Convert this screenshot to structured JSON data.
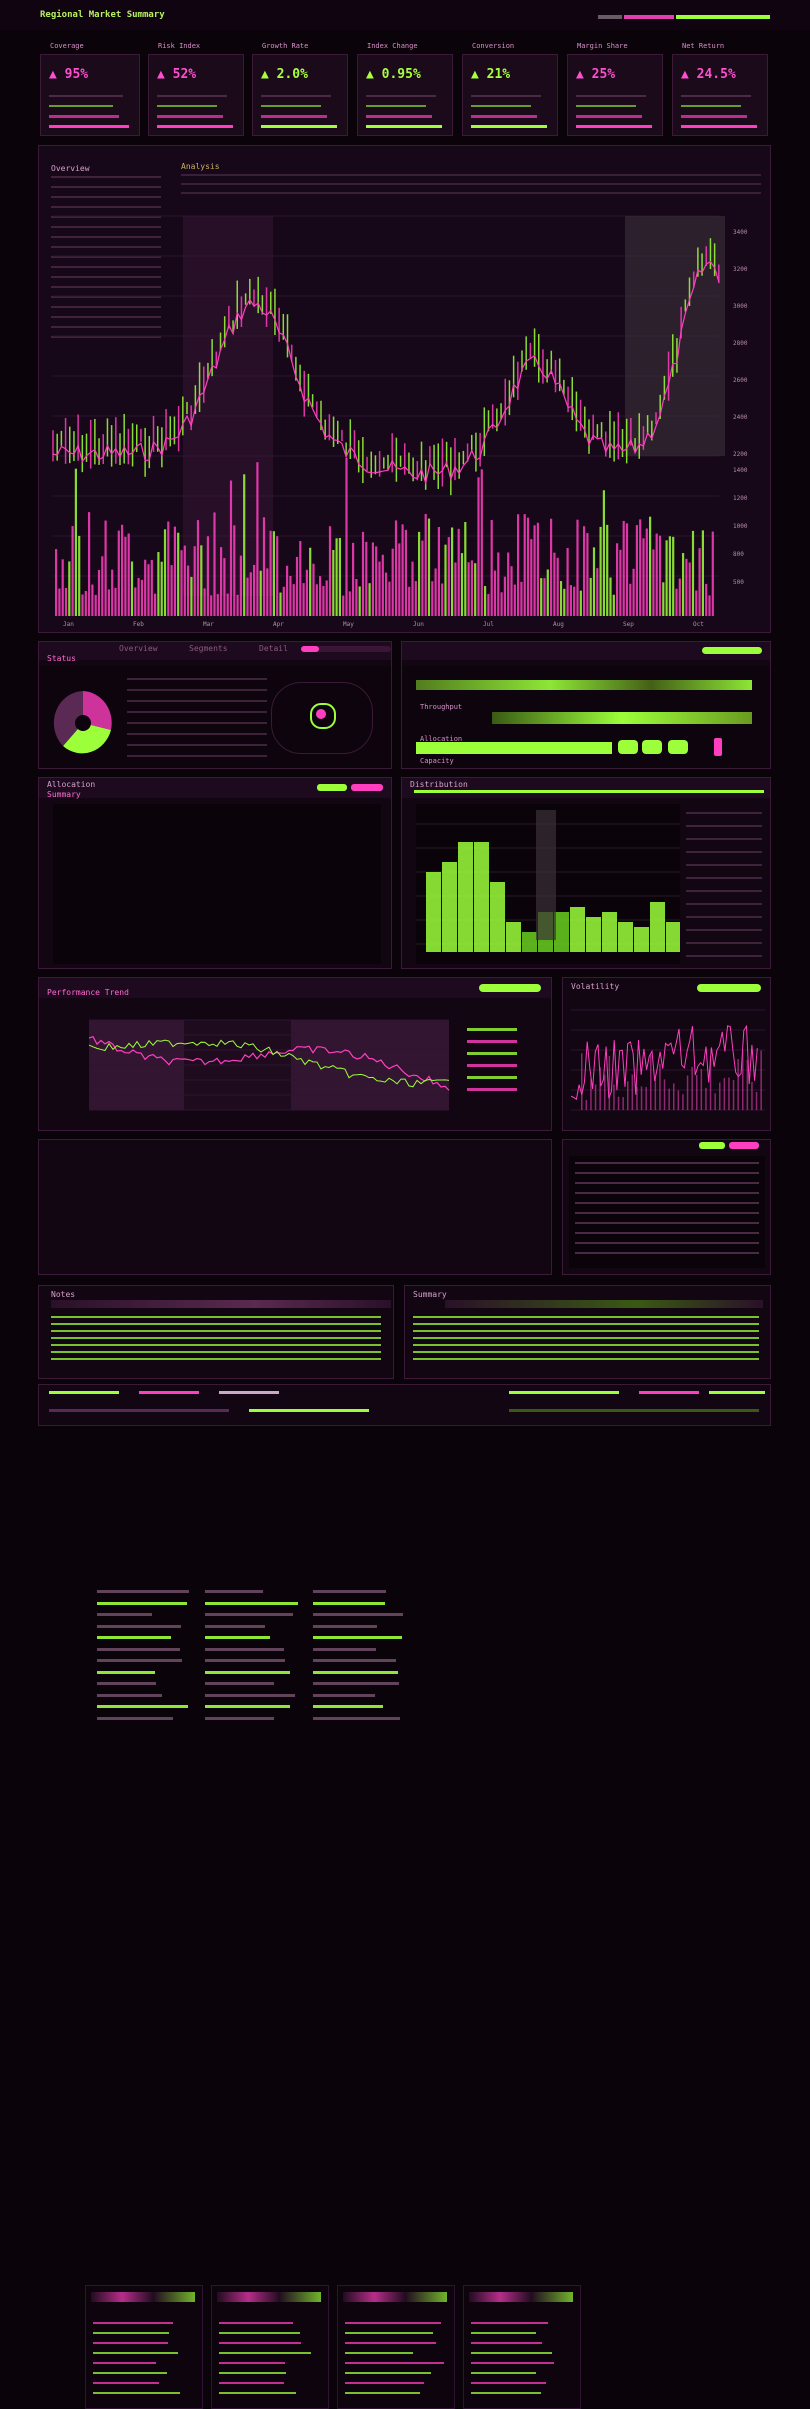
{
  "header": {
    "title": "Regional Market Summary",
    "accent_pink": "#ff3fbf",
    "accent_green": "#9cff3a",
    "background": "#0a030a"
  },
  "kpis": [
    {
      "label": "Coverage",
      "value": "▲ 95%",
      "color": "pink"
    },
    {
      "label": "Risk Index",
      "value": "▲ 52%",
      "color": "pink"
    },
    {
      "label": "Growth Rate",
      "value": "▲ 2.0%",
      "color": "green"
    },
    {
      "label": "Index Change",
      "value": "▲ 0.95%",
      "color": "green"
    },
    {
      "label": "Conversion",
      "value": "▲ 21%",
      "color": "green"
    },
    {
      "label": "Margin Share",
      "value": "▲ 25%",
      "color": "pink"
    },
    {
      "label": "Net Return",
      "value": "▲ 24.5%",
      "color": "pink"
    }
  ],
  "main_chart": {
    "heading": "Overview",
    "sub_heading": "Analysis",
    "y_ticks": [
      "3400",
      "3200",
      "3000",
      "2800",
      "2600",
      "2400",
      "2200",
      "1400",
      "1200",
      "1000",
      "800",
      "500"
    ],
    "x_ticks": [
      "Jan",
      "Feb",
      "Mar",
      "Apr",
      "May",
      "Jun",
      "Jul",
      "Aug",
      "Sep",
      "Oct"
    ]
  },
  "mid_left": {
    "tab_active": "Status",
    "tabs": [
      "Overview",
      "Segments",
      "Detail"
    ]
  },
  "mid_right": {
    "rows": [
      "Throughput",
      "Allocation",
      "Capacity"
    ]
  },
  "table_panel": {
    "title": "Allocation",
    "subtitle": "Summary"
  },
  "bar_panel": {
    "title": "Distribution"
  },
  "line_panel": {
    "title": "Performance Trend"
  },
  "spark_panel": {
    "title": "Volatility"
  },
  "footer_panel": {
    "left_title": "Notes",
    "right_title": "Summary"
  }
}
